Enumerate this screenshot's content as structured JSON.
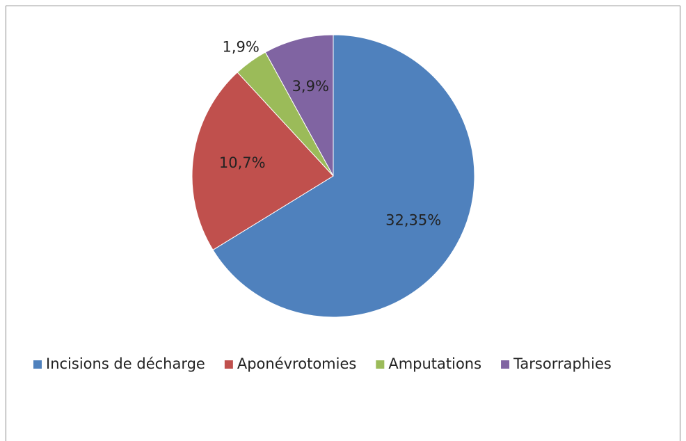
{
  "chart_data": {
    "type": "pie",
    "categories": [
      "Incisions de décharge",
      "Aponévrotomies",
      "Amputations",
      "Tarsorraphies"
    ],
    "values": [
      32.35,
      10.7,
      1.9,
      3.9
    ],
    "value_labels": [
      "32,35%",
      "10,7%",
      "1,9%",
      "3,9%"
    ],
    "colors": [
      "#4f81bd",
      "#c0504d",
      "#9bbb59",
      "#8064a2"
    ],
    "legend": "bottom"
  }
}
